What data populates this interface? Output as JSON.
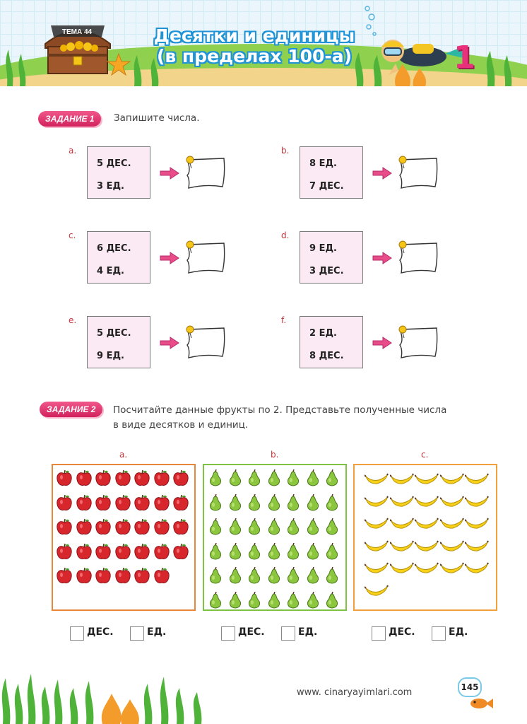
{
  "header": {
    "topic_label": "ТЕМА 44",
    "title_line1": "Десятки и единицы",
    "title_line2": "(в пределах 100-а)",
    "badge_number": "1"
  },
  "task1": {
    "badge": "ЗАДАНИЕ 1",
    "instruction": "Запишите числа.",
    "items": [
      {
        "letter": "a.",
        "line1": "5 ДЕС.",
        "line2": "3 ЕД."
      },
      {
        "letter": "b.",
        "line1": "8 ЕД.",
        "line2": "7 ДЕС."
      },
      {
        "letter": "c.",
        "line1": "6 ДЕС.",
        "line2": "4 ЕД."
      },
      {
        "letter": "d.",
        "line1": "9 ЕД.",
        "line2": "3 ДЕС."
      },
      {
        "letter": "e.",
        "line1": "5 ДЕС.",
        "line2": "9 ЕД."
      },
      {
        "letter": "f.",
        "line1": "2 ЕД.",
        "line2": "8 ДЕС."
      }
    ]
  },
  "task2": {
    "badge": "ЗАДАНИЕ 2",
    "instruction_line1": "Посчитайте данные фрукты по 2. Представьте полученные числа",
    "instruction_line2": "в виде десятков и единиц.",
    "groups": [
      {
        "letter": "a.",
        "fruit": "apple-icon",
        "count": 34,
        "columns": 7,
        "color": "#e8873a"
      },
      {
        "letter": "b.",
        "fruit": "pear-icon",
        "count": 42,
        "columns": 7,
        "color": "#7dc242"
      },
      {
        "letter": "c.",
        "fruit": "banana-icon",
        "count": 26,
        "columns": 5,
        "color": "#f0a03c"
      }
    ],
    "tens_label": "ДЕС.",
    "ones_label": "ЕД."
  },
  "footer": {
    "url": "www. cinaryayimlari.com",
    "page": "145"
  },
  "colors": {
    "accent_pink": "#d2215c",
    "title_blue": "#1f93d6",
    "card_bg": "#fbe9f3"
  }
}
